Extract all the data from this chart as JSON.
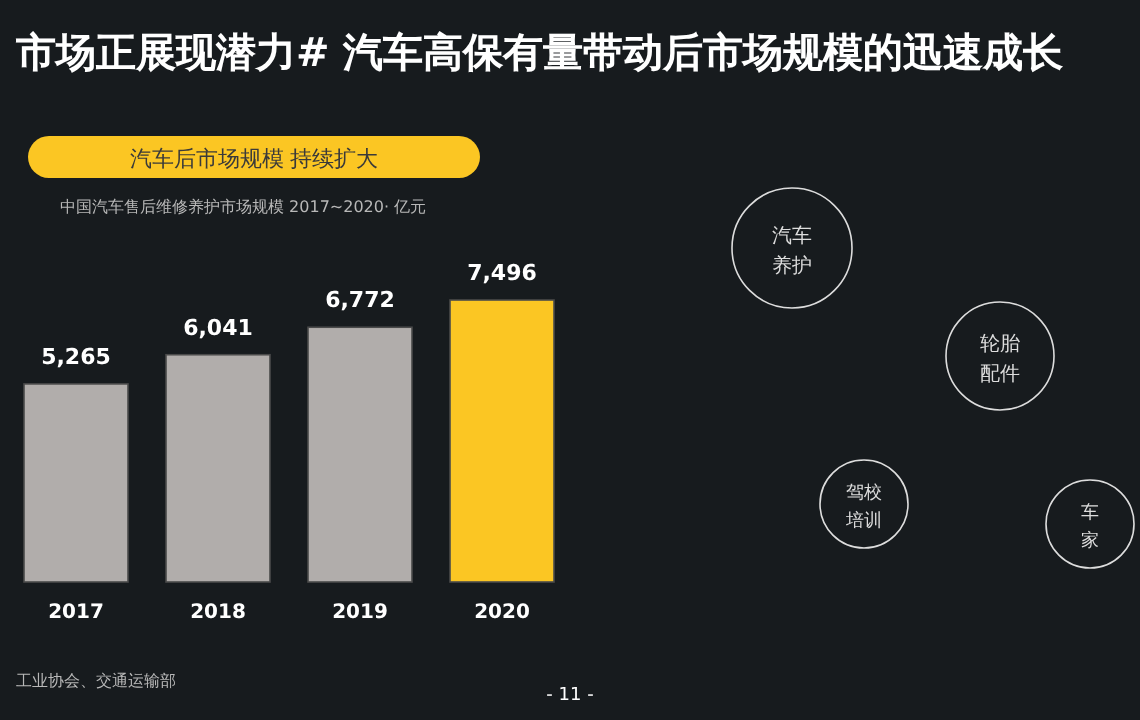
{
  "chart_data": {
    "type": "bar",
    "title": "市场正展现潜力# 汽车高保有量带动后市场规模的迅速成长",
    "subtitle": "汽车后市场规模 持续扩大",
    "categories": [
      "2017",
      "2018",
      "2019",
      "2020"
    ],
    "values": [
      5265,
      6041,
      6772,
      7496
    ],
    "value_labels": [
      "5,265",
      "6,041",
      "6,772",
      "7,496"
    ],
    "colors": [
      "#b1adab",
      "#b1adab",
      "#b1adab",
      "#fbc623"
    ],
    "annotations": [
      "中国汽车售后维修养护市场规模 2017~2020· 亿元",
      "工业协会、交通运输部",
      "- 11 -",
      "汽车养护",
      "轮胎配件",
      "驾校培训",
      "车家"
    ]
  }
}
